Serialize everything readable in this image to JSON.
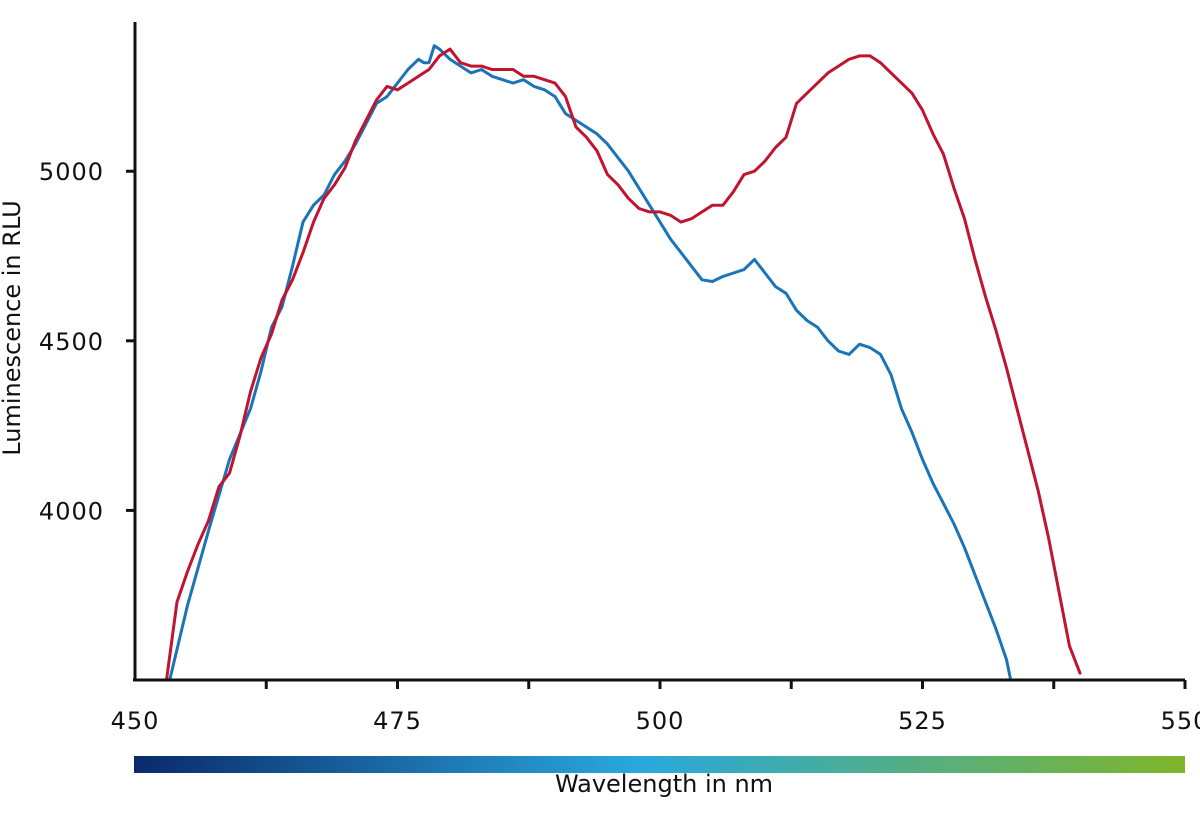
{
  "chart_data": {
    "type": "line",
    "xlabel": "Wavelength in nm",
    "ylabel": "Luminescence in RLU",
    "xlim": [
      450,
      550
    ],
    "ylim": [
      3500,
      5440
    ],
    "x_ticks": [
      450,
      475,
      500,
      525,
      550
    ],
    "x_minor_ticks": [
      462.5,
      487.5,
      512.5,
      537.5
    ],
    "y_ticks": [
      4000,
      4500,
      5000
    ],
    "grid": false,
    "gradient_bar": [
      "#0a2a6b",
      "#29a8df",
      "#7fb52a"
    ],
    "series": [
      {
        "color": "#1a75b8",
        "points": [
          [
            453.3,
            3500
          ],
          [
            455,
            3720
          ],
          [
            457,
            3940
          ],
          [
            459,
            4150
          ],
          [
            461,
            4300
          ],
          [
            462,
            4410
          ],
          [
            463,
            4540
          ],
          [
            464,
            4600
          ],
          [
            465,
            4720
          ],
          [
            466,
            4850
          ],
          [
            467,
            4900
          ],
          [
            468,
            4930
          ],
          [
            469,
            4990
          ],
          [
            470,
            5030
          ],
          [
            471,
            5080
          ],
          [
            472,
            5140
          ],
          [
            473,
            5200
          ],
          [
            474,
            5220
          ],
          [
            475,
            5260
          ],
          [
            476,
            5300
          ],
          [
            477,
            5330
          ],
          [
            477.5,
            5320
          ],
          [
            478,
            5320
          ],
          [
            478.5,
            5370
          ],
          [
            479,
            5360
          ],
          [
            480,
            5330
          ],
          [
            481,
            5310
          ],
          [
            482,
            5290
          ],
          [
            483,
            5300
          ],
          [
            484,
            5280
          ],
          [
            485,
            5270
          ],
          [
            486,
            5260
          ],
          [
            487,
            5270
          ],
          [
            488,
            5250
          ],
          [
            489,
            5240
          ],
          [
            490,
            5220
          ],
          [
            491,
            5170
          ],
          [
            492,
            5150
          ],
          [
            493,
            5130
          ],
          [
            494,
            5110
          ],
          [
            495,
            5080
          ],
          [
            496,
            5040
          ],
          [
            497,
            5000
          ],
          [
            498,
            4950
          ],
          [
            499,
            4900
          ],
          [
            500,
            4850
          ],
          [
            501,
            4800
          ],
          [
            502,
            4760
          ],
          [
            503,
            4720
          ],
          [
            504,
            4680
          ],
          [
            505,
            4675
          ],
          [
            506,
            4690
          ],
          [
            507,
            4700
          ],
          [
            508,
            4710
          ],
          [
            509,
            4740
          ],
          [
            510,
            4700
          ],
          [
            511,
            4660
          ],
          [
            512,
            4640
          ],
          [
            513,
            4590
          ],
          [
            514,
            4560
          ],
          [
            515,
            4540
          ],
          [
            516,
            4500
          ],
          [
            517,
            4470
          ],
          [
            518,
            4460
          ],
          [
            519,
            4490
          ],
          [
            520,
            4480
          ],
          [
            521,
            4460
          ],
          [
            522,
            4400
          ],
          [
            523,
            4300
          ],
          [
            524,
            4230
          ],
          [
            525,
            4150
          ],
          [
            526,
            4080
          ],
          [
            527,
            4020
          ],
          [
            528,
            3960
          ],
          [
            529,
            3890
          ],
          [
            530,
            3810
          ],
          [
            531,
            3730
          ],
          [
            532,
            3650
          ],
          [
            533,
            3560
          ],
          [
            533.4,
            3500
          ]
        ]
      },
      {
        "color": "#c0142f",
        "points": [
          [
            453,
            3500
          ],
          [
            454,
            3730
          ],
          [
            455,
            3820
          ],
          [
            456,
            3900
          ],
          [
            457,
            3970
          ],
          [
            458,
            4070
          ],
          [
            459,
            4110
          ],
          [
            460,
            4220
          ],
          [
            461,
            4350
          ],
          [
            462,
            4450
          ],
          [
            463,
            4520
          ],
          [
            464,
            4620
          ],
          [
            465,
            4680
          ],
          [
            466,
            4760
          ],
          [
            467,
            4850
          ],
          [
            468,
            4920
          ],
          [
            469,
            4960
          ],
          [
            470,
            5010
          ],
          [
            471,
            5090
          ],
          [
            472,
            5150
          ],
          [
            473,
            5210
          ],
          [
            474,
            5250
          ],
          [
            475,
            5240
          ],
          [
            476,
            5260
          ],
          [
            477,
            5280
          ],
          [
            478,
            5300
          ],
          [
            479,
            5340
          ],
          [
            480,
            5360
          ],
          [
            481,
            5320
          ],
          [
            482,
            5310
          ],
          [
            483,
            5310
          ],
          [
            484,
            5300
          ],
          [
            485,
            5300
          ],
          [
            486,
            5300
          ],
          [
            487,
            5280
          ],
          [
            488,
            5280
          ],
          [
            489,
            5270
          ],
          [
            490,
            5260
          ],
          [
            491,
            5220
          ],
          [
            492,
            5130
          ],
          [
            493,
            5100
          ],
          [
            494,
            5060
          ],
          [
            495,
            4990
          ],
          [
            496,
            4960
          ],
          [
            497,
            4920
          ],
          [
            498,
            4890
          ],
          [
            499,
            4880
          ],
          [
            500,
            4880
          ],
          [
            501,
            4870
          ],
          [
            502,
            4850
          ],
          [
            503,
            4860
          ],
          [
            504,
            4880
          ],
          [
            505,
            4900
          ],
          [
            506,
            4900
          ],
          [
            507,
            4940
          ],
          [
            508,
            4990
          ],
          [
            509,
            5000
          ],
          [
            510,
            5030
          ],
          [
            511,
            5070
          ],
          [
            512,
            5100
          ],
          [
            513,
            5200
          ],
          [
            514,
            5230
          ],
          [
            515,
            5260
          ],
          [
            516,
            5290
          ],
          [
            517,
            5310
          ],
          [
            518,
            5330
          ],
          [
            519,
            5340
          ],
          [
            520,
            5340
          ],
          [
            521,
            5320
          ],
          [
            522,
            5290
          ],
          [
            523,
            5260
          ],
          [
            524,
            5230
          ],
          [
            525,
            5180
          ],
          [
            526,
            5110
          ],
          [
            527,
            5050
          ],
          [
            528,
            4950
          ],
          [
            529,
            4860
          ],
          [
            530,
            4740
          ],
          [
            531,
            4630
          ],
          [
            532,
            4530
          ],
          [
            533,
            4420
          ],
          [
            534,
            4300
          ],
          [
            535,
            4180
          ],
          [
            536,
            4060
          ],
          [
            537,
            3920
          ],
          [
            538,
            3760
          ],
          [
            539,
            3600
          ],
          [
            540,
            3520
          ]
        ]
      }
    ]
  }
}
